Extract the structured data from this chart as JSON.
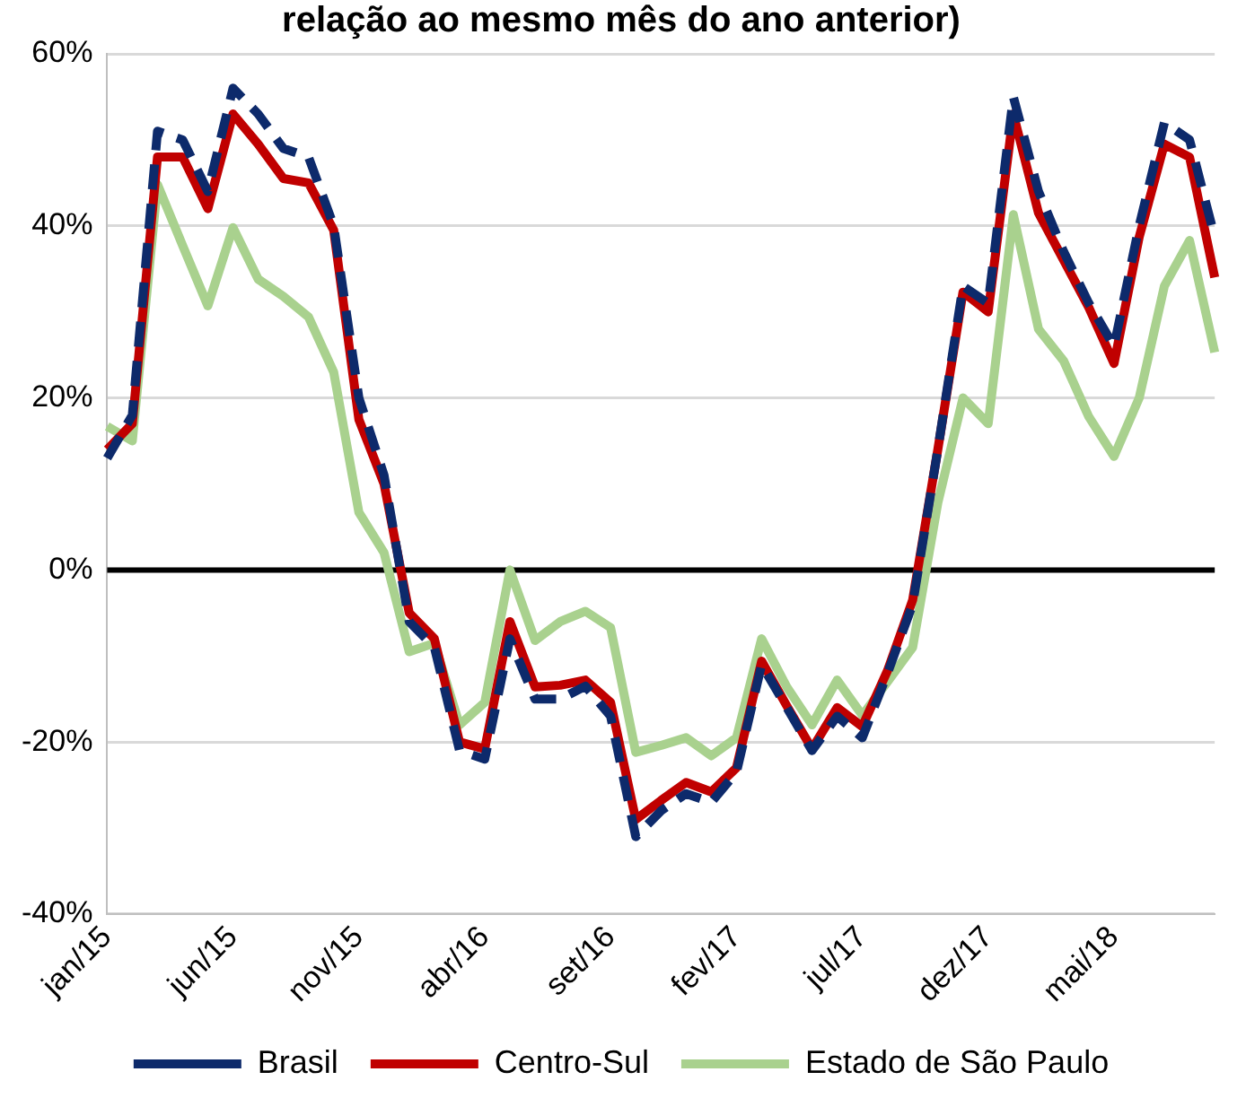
{
  "chart_data": {
    "type": "line",
    "title": "relação ao mesmo mês do ano anterior)",
    "categories": [
      "jan/15",
      null,
      null,
      null,
      null,
      "jun/15",
      null,
      null,
      null,
      null,
      "nov/15",
      null,
      null,
      null,
      null,
      "abr/16",
      null,
      null,
      null,
      null,
      "set/16",
      null,
      null,
      null,
      null,
      "fev/17",
      null,
      null,
      null,
      null,
      "jul/17",
      null,
      null,
      null,
      null,
      "dez/17",
      null,
      null,
      null,
      null,
      "mai/18",
      null,
      null,
      null,
      null
    ],
    "series": [
      {
        "name": "Brasil",
        "color": "#0d2a6b",
        "line_style": "dashed",
        "values": [
          13,
          18,
          51,
          50,
          44,
          56,
          53,
          49,
          48,
          40,
          20,
          11,
          -6,
          -9,
          -21,
          -22,
          -8,
          -15,
          -15,
          -13.5,
          -17,
          -31,
          -28,
          -26,
          -27,
          -23.5,
          -11,
          -16,
          -21,
          -17,
          -19.5,
          -12,
          -4,
          14,
          33,
          31,
          55,
          44,
          37,
          31,
          26,
          40,
          52,
          50,
          38.7
        ]
      },
      {
        "name": "Centro-Sul",
        "color": "#c00000",
        "line_style": "solid",
        "values": [
          14,
          17,
          48,
          48,
          42,
          53,
          49.5,
          45.5,
          45,
          39.5,
          17.5,
          10,
          -5,
          -8,
          -20,
          -20.8,
          -6,
          -13.6,
          -13.4,
          -12.8,
          -15.4,
          -29,
          -26.8,
          -24.7,
          -25.8,
          -23,
          -10.6,
          -15.8,
          -20.8,
          -16,
          -18.2,
          -11.7,
          -3.5,
          14,
          32.3,
          30,
          53,
          41.5,
          36,
          30.5,
          24,
          38.7,
          49.5,
          48,
          34
        ]
      },
      {
        "name": "Estado de São Paulo",
        "color": "#a9d18e",
        "line_style": "solid",
        "values": [
          16.7,
          15,
          44.8,
          37.7,
          30.7,
          39.8,
          33.8,
          31.8,
          29.4,
          23,
          6.7,
          2,
          -9.5,
          -8.5,
          -18,
          -15.4,
          0,
          -8.2,
          -6,
          -4.8,
          -6.7,
          -21.2,
          -20.4,
          -19.5,
          -21.6,
          -19.5,
          -8,
          -13.6,
          -18,
          -12.8,
          -16.9,
          -13,
          -9,
          7.8,
          20,
          17,
          41.3,
          28,
          24.3,
          17.8,
          13.2,
          20,
          33,
          38.3,
          25.3
        ]
      }
    ],
    "ylim": [
      -40,
      60
    ],
    "yticks": [
      {
        "value": -40,
        "label": "-40%"
      },
      {
        "value": -20,
        "label": "-20%"
      },
      {
        "value": 0,
        "label": "0%"
      },
      {
        "value": 20,
        "label": "20%"
      },
      {
        "value": 40,
        "label": "40%"
      },
      {
        "value": 60,
        "label": "60%"
      }
    ],
    "ref_lines": [
      {
        "axis": "y",
        "value": 0,
        "color": "#000000"
      }
    ],
    "grid": "y",
    "legend": "bottom",
    "marker": "none"
  }
}
